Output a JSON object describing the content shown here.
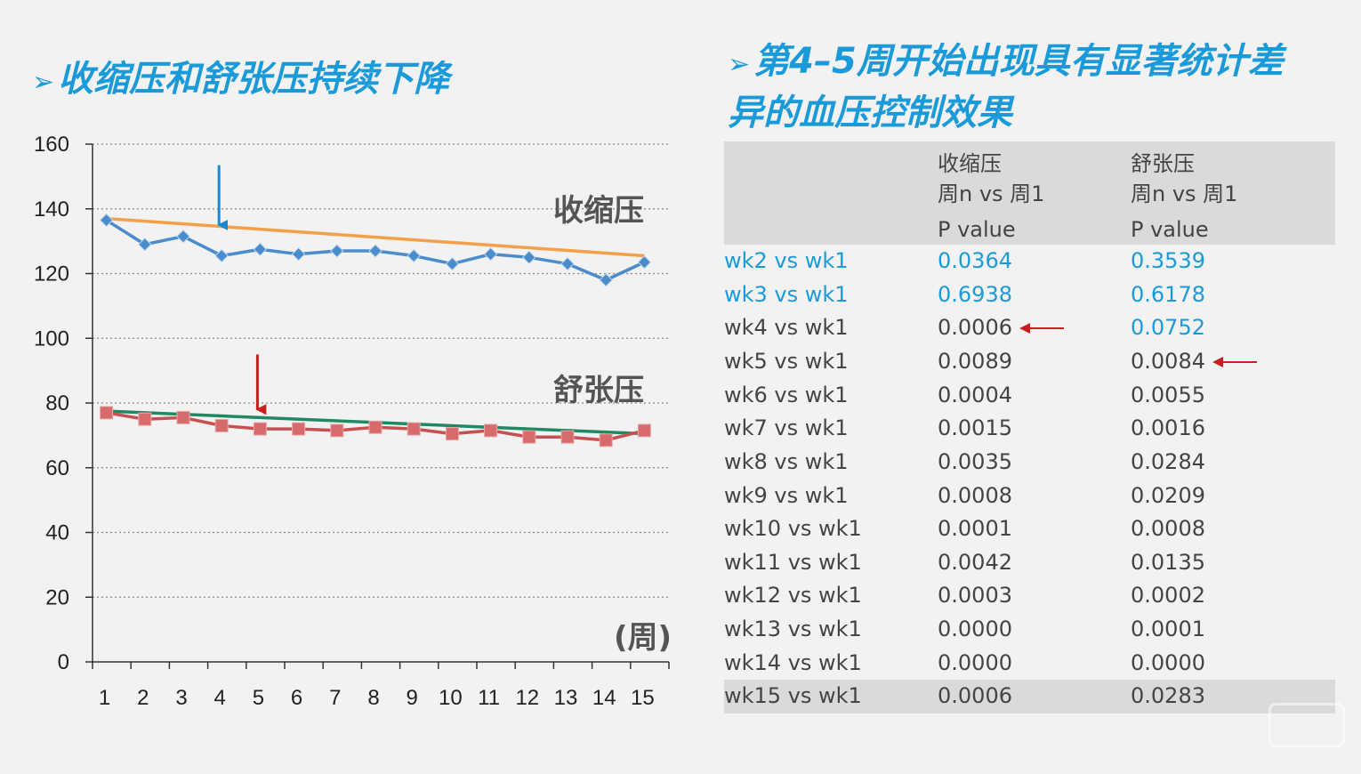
{
  "left_title": "收缩压和舒张压持续下降",
  "right_title_line1": "第4–5周开始出现具有显著统计差",
  "right_title_line2": "异的血压控制效果",
  "bullet_glyph": "➢",
  "colors": {
    "title": "#1a9ad9",
    "systolic": "#4a8ccc",
    "systolic_trend": "#f4a04a",
    "diastolic": "#c95050",
    "diastolic_trend": "#1f8a62",
    "arrow_blue": "#1a8ad0",
    "arrow_red": "#c81e1e",
    "highlight_text": "#1a9ad9"
  },
  "chart_data": {
    "type": "line",
    "x": [
      1,
      2,
      3,
      4,
      5,
      6,
      7,
      8,
      9,
      10,
      11,
      12,
      13,
      14,
      15
    ],
    "xtick_labels": [
      "1",
      "2",
      "3",
      "4",
      "5",
      "6",
      "7",
      "8",
      "9",
      "10",
      "11",
      "12",
      "13",
      "14",
      "15"
    ],
    "ylim": [
      0,
      160
    ],
    "yticks": [
      0,
      20,
      40,
      60,
      80,
      100,
      120,
      140,
      160
    ],
    "ytick_labels": [
      "0",
      "20",
      "40",
      "60",
      "80",
      "100",
      "120",
      "140",
      "160"
    ],
    "grid": "horizontal dotted",
    "unit_label": "(周)",
    "series": [
      {
        "name": "收缩压",
        "marker": "diamond",
        "values": [
          136.5,
          129,
          131.5,
          125.5,
          127.5,
          126,
          127,
          127,
          125.5,
          123,
          126,
          125,
          123,
          118,
          123.5
        ],
        "trend": [
          137,
          125.5
        ]
      },
      {
        "name": "舒张压",
        "marker": "square",
        "values": [
          77,
          75,
          75.5,
          73,
          72,
          72,
          71.5,
          72.5,
          72,
          70.5,
          71.5,
          69.5,
          69.5,
          68.5,
          71.5
        ],
        "trend": [
          77.5,
          70.5
        ]
      }
    ],
    "annotations": [
      {
        "type": "arrow-down",
        "x": 4,
        "from": 153.5,
        "to": 135,
        "color": "blue"
      },
      {
        "type": "arrow-down",
        "x": 5,
        "from": 95,
        "to": 78,
        "color": "red"
      }
    ]
  },
  "table": {
    "headers": [
      [
        "",
        "",
        ""
      ],
      [
        "收缩压",
        "周n vs 周1",
        "P value"
      ],
      [
        "舒张压",
        "周n vs 周1",
        "P value"
      ]
    ],
    "rows": [
      {
        "label": "wk2 vs wk1",
        "sbp": "0.0364",
        "dbp": "0.3539",
        "sbp_highlight": true,
        "dbp_highlight": true,
        "label_highlight": true,
        "arrow": ""
      },
      {
        "label": "wk3 vs wk1",
        "sbp": "0.6938",
        "dbp": "0.6178",
        "sbp_highlight": true,
        "dbp_highlight": true,
        "label_highlight": true,
        "arrow": ""
      },
      {
        "label": "wk4 vs wk1",
        "sbp": "0.0006",
        "dbp": "0.0752",
        "sbp_highlight": false,
        "dbp_highlight": true,
        "label_highlight": false,
        "arrow": "sbp"
      },
      {
        "label": "wk5 vs wk1",
        "sbp": "0.0089",
        "dbp": "0.0084",
        "sbp_highlight": false,
        "dbp_highlight": false,
        "label_highlight": false,
        "arrow": "dbp"
      },
      {
        "label": "wk6 vs wk1",
        "sbp": "0.0004",
        "dbp": "0.0055",
        "sbp_highlight": false,
        "dbp_highlight": false,
        "label_highlight": false,
        "arrow": ""
      },
      {
        "label": "wk7 vs wk1",
        "sbp": "0.0015",
        "dbp": "0.0016",
        "sbp_highlight": false,
        "dbp_highlight": false,
        "label_highlight": false,
        "arrow": ""
      },
      {
        "label": "wk8 vs wk1",
        "sbp": "0.0035",
        "dbp": "0.0284",
        "sbp_highlight": false,
        "dbp_highlight": false,
        "label_highlight": false,
        "arrow": ""
      },
      {
        "label": "wk9 vs wk1",
        "sbp": "0.0008",
        "dbp": "0.0209",
        "sbp_highlight": false,
        "dbp_highlight": false,
        "label_highlight": false,
        "arrow": ""
      },
      {
        "label": "wk10 vs wk1",
        "sbp": "0.0001",
        "dbp": "0.0008",
        "sbp_highlight": false,
        "dbp_highlight": false,
        "label_highlight": false,
        "arrow": ""
      },
      {
        "label": "wk11 vs wk1",
        "sbp": "0.0042",
        "dbp": "0.0135",
        "sbp_highlight": false,
        "dbp_highlight": false,
        "label_highlight": false,
        "arrow": ""
      },
      {
        "label": "wk12 vs wk1",
        "sbp": "0.0003",
        "dbp": "0.0002",
        "sbp_highlight": false,
        "dbp_highlight": false,
        "label_highlight": false,
        "arrow": ""
      },
      {
        "label": "wk13 vs wk1",
        "sbp": "0.0000",
        "dbp": "0.0001",
        "sbp_highlight": false,
        "dbp_highlight": false,
        "label_highlight": false,
        "arrow": ""
      },
      {
        "label": "wk14 vs wk1",
        "sbp": "0.0000",
        "dbp": "0.0000",
        "sbp_highlight": false,
        "dbp_highlight": false,
        "label_highlight": false,
        "arrow": ""
      },
      {
        "label": "wk15 vs wk1",
        "sbp": "0.0006",
        "dbp": "0.0283",
        "sbp_highlight": false,
        "dbp_highlight": false,
        "label_highlight": false,
        "arrow": ""
      }
    ]
  },
  "watermark_icon": "logo-watermark"
}
